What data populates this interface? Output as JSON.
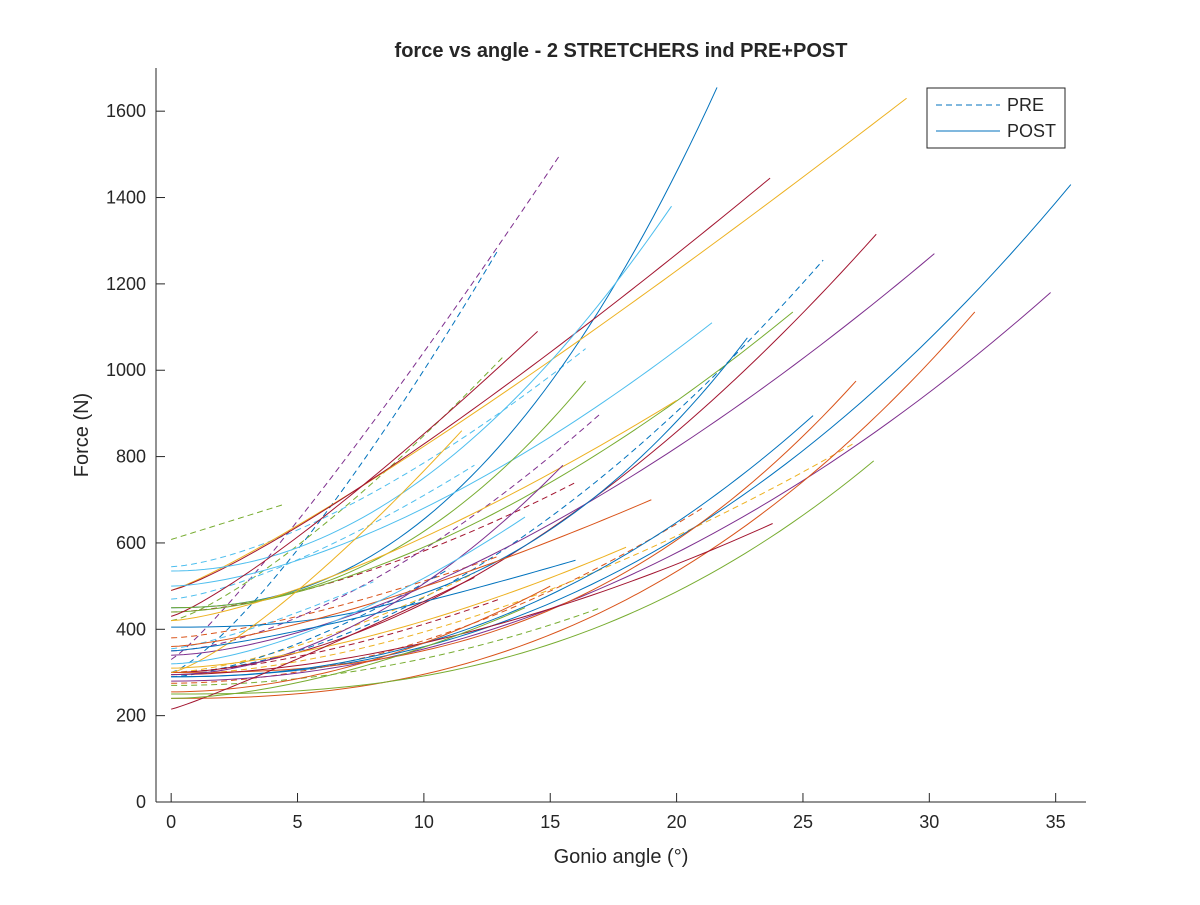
{
  "chart_data": {
    "type": "line",
    "title": "force vs angle - 2 STRETCHERS ind PRE+POST",
    "xlabel": "Gonio angle (°)",
    "ylabel": "Force (N)",
    "xlim": [
      -0.6,
      36.2
    ],
    "ylim": [
      0,
      1700
    ],
    "xticks": [
      "0",
      "5",
      "10",
      "15",
      "20",
      "25",
      "30",
      "35"
    ],
    "yticks": [
      "0",
      "200",
      "400",
      "600",
      "800",
      "1000",
      "1200",
      "1400",
      "1600"
    ],
    "legend": {
      "placement": "top-right",
      "entries": [
        {
          "label": "PRE",
          "style": "dashed",
          "color": "#0072BD"
        },
        {
          "label": "POST",
          "style": "solid",
          "color": "#0072BD"
        }
      ]
    },
    "grid": false,
    "colors": [
      "#0072BD",
      "#D95319",
      "#EDB120",
      "#7E2F8E",
      "#77AC30",
      "#4DBEEE",
      "#A2142F"
    ],
    "series": [
      {
        "kind": "PRE",
        "color": "#7E2F8E",
        "x0": 0,
        "x1": 15.4,
        "y0": 330,
        "y1": 1500,
        "p": 1.15
      },
      {
        "kind": "PRE",
        "color": "#0072BD",
        "x0": 0,
        "x1": 12.9,
        "y0": 300,
        "y1": 1275,
        "p": 1.3
      },
      {
        "kind": "PRE",
        "color": "#77AC30",
        "x0": 0,
        "x1": 13.2,
        "y0": 420,
        "y1": 1035,
        "p": 1.3
      },
      {
        "kind": "PRE",
        "color": "#77AC30",
        "x0": 0,
        "x1": 4.5,
        "y0": 608,
        "y1": 690,
        "p": 1.0
      },
      {
        "kind": "PRE",
        "color": "#4DBEEE",
        "x0": 0,
        "x1": 16.4,
        "y0": 545,
        "y1": 1050,
        "p": 1.5
      },
      {
        "kind": "PRE",
        "color": "#4DBEEE",
        "x0": 0,
        "x1": 12.0,
        "y0": 470,
        "y1": 780,
        "p": 1.4
      },
      {
        "kind": "PRE",
        "color": "#0072BD",
        "x0": 0,
        "x1": 25.8,
        "y0": 300,
        "y1": 1255,
        "p": 1.8
      },
      {
        "kind": "PRE",
        "color": "#A2142F",
        "x0": 0,
        "x1": 16.0,
        "y0": 440,
        "y1": 740,
        "p": 1.6
      },
      {
        "kind": "PRE",
        "color": "#D95319",
        "x0": 0,
        "x1": 13.0,
        "y0": 380,
        "y1": 570,
        "p": 1.4
      },
      {
        "kind": "PRE",
        "color": "#EDB120",
        "x0": 0,
        "x1": 12.0,
        "y0": 300,
        "y1": 530,
        "p": 1.5
      },
      {
        "kind": "PRE",
        "color": "#7E2F8E",
        "x0": 0,
        "x1": 17.0,
        "y0": 350,
        "y1": 900,
        "p": 1.6
      },
      {
        "kind": "PRE",
        "color": "#77AC30",
        "x0": 0,
        "x1": 17.0,
        "y0": 270,
        "y1": 450,
        "p": 2.0
      },
      {
        "kind": "PRE",
        "color": "#D95319",
        "x0": 0,
        "x1": 21.0,
        "y0": 275,
        "y1": 680,
        "p": 1.9
      },
      {
        "kind": "PRE",
        "color": "#0072BD",
        "x0": 0,
        "x1": 11.0,
        "y0": 290,
        "y1": 540,
        "p": 1.5
      },
      {
        "kind": "PRE",
        "color": "#EDB120",
        "x0": 0,
        "x1": 27.0,
        "y0": 295,
        "y1": 830,
        "p": 1.7
      },
      {
        "kind": "PRE",
        "color": "#4DBEEE",
        "x0": 0,
        "x1": 8.0,
        "y0": 355,
        "y1": 510,
        "p": 1.3
      },
      {
        "kind": "PRE",
        "color": "#A2142F",
        "x0": 0,
        "x1": 13.0,
        "y0": 300,
        "y1": 470,
        "p": 1.6
      },
      {
        "kind": "POST",
        "color": "#0072BD",
        "x0": 0,
        "x1": 21.6,
        "y0": 450,
        "y1": 1655,
        "p": 2.3
      },
      {
        "kind": "POST",
        "color": "#EDB120",
        "x0": 0,
        "x1": 29.1,
        "y0": 490,
        "y1": 1630,
        "p": 1.15
      },
      {
        "kind": "POST",
        "color": "#A2142F",
        "x0": 0,
        "x1": 23.7,
        "y0": 490,
        "y1": 1445,
        "p": 1.2
      },
      {
        "kind": "POST",
        "color": "#4DBEEE",
        "x0": 0,
        "x1": 19.8,
        "y0": 535,
        "y1": 1380,
        "p": 2.0
      },
      {
        "kind": "POST",
        "color": "#0072BD",
        "x0": 0,
        "x1": 35.6,
        "y0": 290,
        "y1": 1430,
        "p": 2.2
      },
      {
        "kind": "POST",
        "color": "#A2142F",
        "x0": 0,
        "x1": 27.9,
        "y0": 300,
        "y1": 1315,
        "p": 1.8
      },
      {
        "kind": "POST",
        "color": "#7E2F8E",
        "x0": 0,
        "x1": 30.2,
        "y0": 340,
        "y1": 1270,
        "p": 1.6
      },
      {
        "kind": "POST",
        "color": "#7E2F8E",
        "x0": 0,
        "x1": 34.8,
        "y0": 280,
        "y1": 1180,
        "p": 2.0
      },
      {
        "kind": "POST",
        "color": "#D95319",
        "x0": 0,
        "x1": 31.8,
        "y0": 240,
        "y1": 1135,
        "p": 2.4
      },
      {
        "kind": "POST",
        "color": "#77AC30",
        "x0": 0,
        "x1": 24.6,
        "y0": 440,
        "y1": 1135,
        "p": 1.7
      },
      {
        "kind": "POST",
        "color": "#4DBEEE",
        "x0": 0,
        "x1": 21.4,
        "y0": 500,
        "y1": 1110,
        "p": 1.6
      },
      {
        "kind": "POST",
        "color": "#0072BD",
        "x0": 0,
        "x1": 22.8,
        "y0": 405,
        "y1": 1075,
        "p": 2.6
      },
      {
        "kind": "POST",
        "color": "#A2142F",
        "x0": 0,
        "x1": 14.5,
        "y0": 430,
        "y1": 1090,
        "p": 1.2
      },
      {
        "kind": "POST",
        "color": "#77AC30",
        "x0": 0,
        "x1": 16.4,
        "y0": 450,
        "y1": 975,
        "p": 2.2
      },
      {
        "kind": "POST",
        "color": "#D95319",
        "x0": 0,
        "x1": 27.1,
        "y0": 300,
        "y1": 975,
        "p": 2.6
      },
      {
        "kind": "POST",
        "color": "#EDB120",
        "x0": 0,
        "x1": 20.0,
        "y0": 420,
        "y1": 930,
        "p": 1.4
      },
      {
        "kind": "POST",
        "color": "#0072BD",
        "x0": 0,
        "x1": 25.4,
        "y0": 290,
        "y1": 895,
        "p": 2.2
      },
      {
        "kind": "POST",
        "color": "#77AC30",
        "x0": 0,
        "x1": 27.8,
        "y0": 250,
        "y1": 790,
        "p": 2.5
      },
      {
        "kind": "POST",
        "color": "#A2142F",
        "x0": 0,
        "x1": 23.8,
        "y0": 295,
        "y1": 645,
        "p": 1.8
      },
      {
        "kind": "POST",
        "color": "#EDB120",
        "x0": 0,
        "x1": 11.5,
        "y0": 300,
        "y1": 860,
        "p": 1.3
      },
      {
        "kind": "POST",
        "color": "#7E2F8E",
        "x0": 0,
        "x1": 15.5,
        "y0": 295,
        "y1": 780,
        "p": 1.9
      },
      {
        "kind": "POST",
        "color": "#D95319",
        "x0": 0,
        "x1": 19.0,
        "y0": 360,
        "y1": 700,
        "p": 1.4
      },
      {
        "kind": "POST",
        "color": "#4DBEEE",
        "x0": 0,
        "x1": 14.0,
        "y0": 320,
        "y1": 660,
        "p": 1.6
      },
      {
        "kind": "POST",
        "color": "#0072BD",
        "x0": 0,
        "x1": 16.0,
        "y0": 350,
        "y1": 560,
        "p": 1.3
      },
      {
        "kind": "POST",
        "color": "#EDB120",
        "x0": 0,
        "x1": 18.0,
        "y0": 310,
        "y1": 590,
        "p": 1.6
      },
      {
        "kind": "POST",
        "color": "#D95319",
        "x0": 0,
        "x1": 15.0,
        "y0": 255,
        "y1": 500,
        "p": 1.9
      },
      {
        "kind": "POST",
        "color": "#A2142F",
        "x0": 0,
        "x1": 12.0,
        "y0": 215,
        "y1": 520,
        "p": 1.1
      },
      {
        "kind": "POST",
        "color": "#77AC30",
        "x0": 0,
        "x1": 14.0,
        "y0": 240,
        "y1": 450,
        "p": 1.7
      }
    ]
  }
}
